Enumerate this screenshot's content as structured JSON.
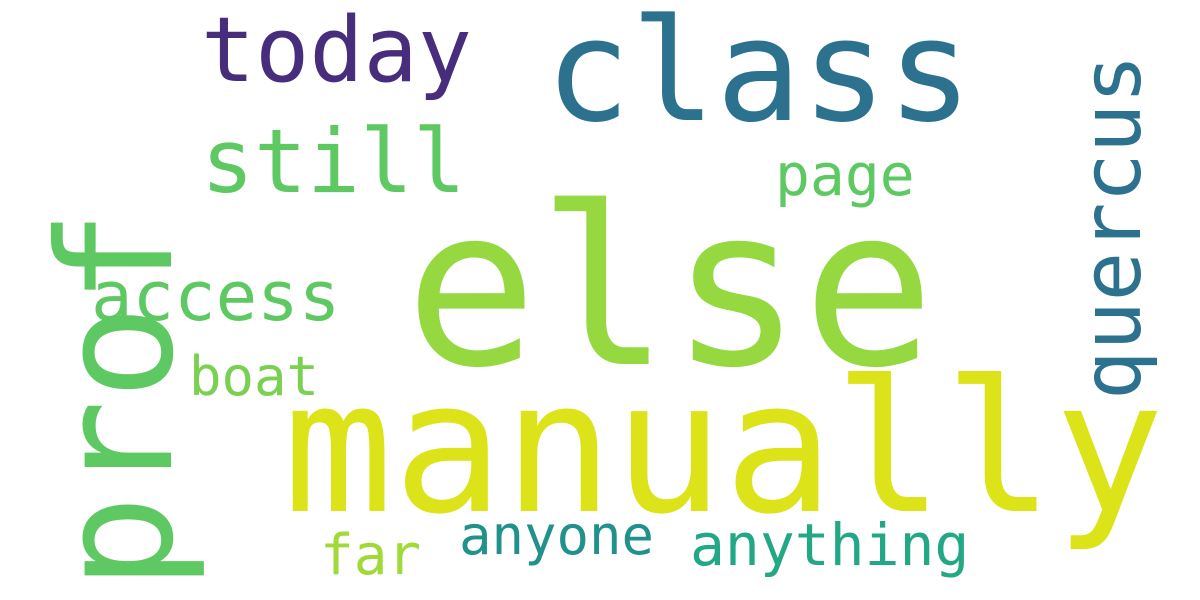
{
  "word_cloud": {
    "background": "#ffffff",
    "words": [
      {
        "text": "else",
        "color": "#95d840"
      },
      {
        "text": "manually",
        "color": "#dce319"
      },
      {
        "text": "prof",
        "color": "#5ec962"
      },
      {
        "text": "class",
        "color": "#2c728e"
      },
      {
        "text": "today",
        "color": "#472d7b"
      },
      {
        "text": "still",
        "color": "#5ec962"
      },
      {
        "text": "quercus",
        "color": "#2c728e"
      },
      {
        "text": "access",
        "color": "#5ec962"
      },
      {
        "text": "anything",
        "color": "#22a884"
      },
      {
        "text": "anyone",
        "color": "#21918c"
      },
      {
        "text": "page",
        "color": "#5ec962"
      },
      {
        "text": "far",
        "color": "#a0da39"
      },
      {
        "text": "boat",
        "color": "#7ad151"
      }
    ]
  }
}
